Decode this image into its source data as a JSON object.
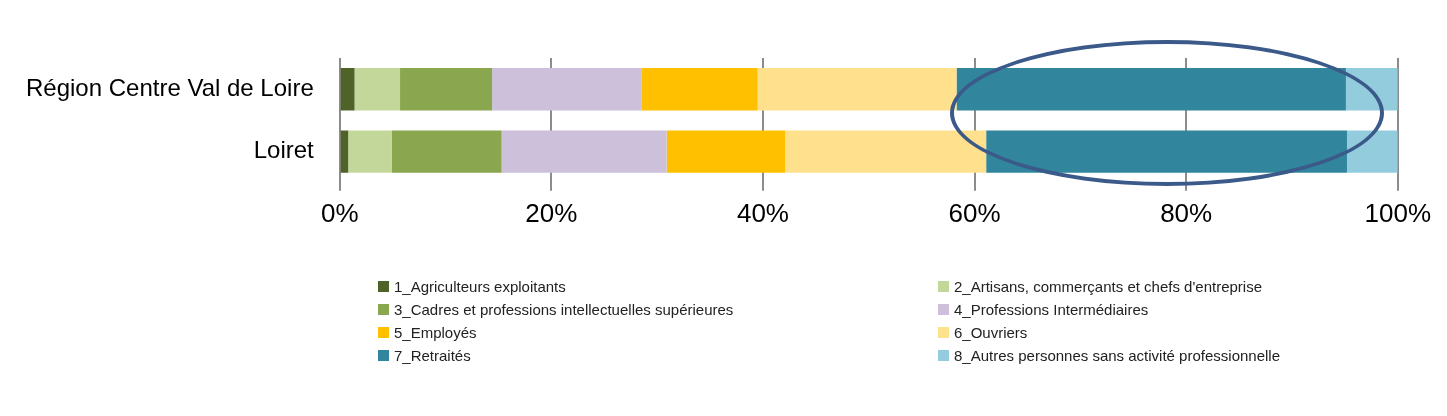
{
  "chart_data": {
    "type": "bar",
    "orientation": "horizontal",
    "stacked": true,
    "categories": [
      "Région Centre Val de Loire",
      "Loiret"
    ],
    "series": [
      {
        "name": "1_Agriculteurs exploitants",
        "color": "#4f6228",
        "values": [
          1.4,
          0.8
        ]
      },
      {
        "name": "2_Artisans, commerçants et chefs d'entreprise",
        "color": "#c4d79b",
        "values": [
          4.3,
          4.1
        ]
      },
      {
        "name": "3_Cadres et professions intellectuelles supérieures",
        "color": "#8aa64f",
        "values": [
          8.7,
          10.4
        ]
      },
      {
        "name": "4_Professions Intermédiaires",
        "color": "#ccc0da",
        "values": [
          14.1,
          15.6
        ]
      },
      {
        "name": "5_Employés",
        "color": "#ffc000",
        "values": [
          11.0,
          11.2
        ]
      },
      {
        "name": "6_Ouvriers",
        "color": "#ffe08c",
        "values": [
          18.8,
          19.0
        ]
      },
      {
        "name": "7_Retraités",
        "color": "#31859c",
        "values": [
          36.8,
          34.1
        ]
      },
      {
        "name": "8_Autres personnes sans activité professionnelle",
        "color": "#93cddd",
        "values": [
          4.9,
          4.8
        ]
      }
    ],
    "xlim": [
      0,
      100
    ],
    "xticks": [
      {
        "value": 0,
        "label": "0%"
      },
      {
        "value": 20,
        "label": "20%"
      },
      {
        "value": 40,
        "label": "40%"
      },
      {
        "value": 60,
        "label": "60%"
      },
      {
        "value": 80,
        "label": "80%"
      },
      {
        "value": 100,
        "label": "100%"
      }
    ],
    "grid": "x",
    "legend": "bottom"
  }
}
